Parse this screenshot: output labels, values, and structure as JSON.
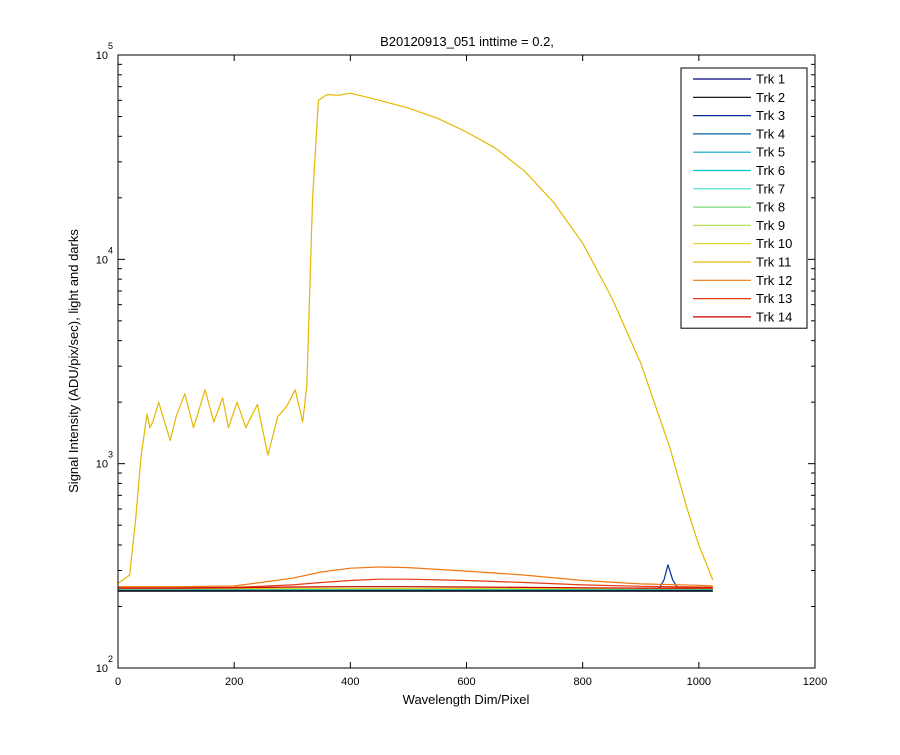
{
  "chart_data": {
    "type": "line",
    "title": "B20120913_051 inttime = 0.2,",
    "xlabel": "Wavelength Dim/Pixel",
    "ylabel": "Signal Intensity (ADU/pix/sec), light and darks",
    "xlim": [
      0,
      1200
    ],
    "ylim": [
      100,
      100000
    ],
    "yscale": "log",
    "grid": false,
    "legend_placement": "top-right",
    "x_ticks": [
      "0",
      "200",
      "400",
      "600",
      "800",
      "1000",
      "1200"
    ],
    "y_ticks": [
      {
        "value": 100,
        "base": "10",
        "exp": "2"
      },
      {
        "value": 1000,
        "base": "10",
        "exp": "3"
      },
      {
        "value": 10000,
        "base": "10",
        "exp": "4"
      },
      {
        "value": 100000,
        "base": "10",
        "exp": "5"
      }
    ],
    "series": [
      {
        "name": "Trk 1",
        "color": "#00007f",
        "x": [
          0,
          100,
          200,
          300,
          400,
          500,
          600,
          700,
          800,
          900,
          1024
        ],
        "y": [
          240,
          240,
          240,
          240,
          240,
          240,
          240,
          240,
          240,
          240,
          240
        ]
      },
      {
        "name": "Trk 2",
        "color": "#000000",
        "x": [
          0,
          100,
          200,
          300,
          400,
          500,
          600,
          700,
          800,
          900,
          1024
        ],
        "y": [
          238,
          238,
          238,
          238,
          238,
          238,
          238,
          238,
          238,
          238,
          238
        ]
      },
      {
        "name": "Trk 3",
        "color": "#0033a0",
        "x": [
          0,
          100,
          200,
          300,
          400,
          500,
          600,
          700,
          800,
          900,
          930,
          940,
          947,
          955,
          965,
          1024
        ],
        "y": [
          241,
          241,
          241,
          241,
          241,
          241,
          241,
          241,
          241,
          241,
          241,
          270,
          320,
          270,
          243,
          241
        ]
      },
      {
        "name": "Trk 4",
        "color": "#00609f",
        "x": [
          0,
          100,
          200,
          300,
          400,
          500,
          600,
          700,
          800,
          900,
          1024
        ],
        "y": [
          242,
          242,
          242,
          242,
          242,
          242,
          242,
          242,
          242,
          242,
          242
        ]
      },
      {
        "name": "Trk 5",
        "color": "#0aa5c0",
        "x": [
          0,
          100,
          200,
          300,
          400,
          500,
          600,
          700,
          800,
          900,
          1024
        ],
        "y": [
          243,
          243,
          243,
          243,
          243,
          243,
          243,
          243,
          243,
          243,
          243
        ]
      },
      {
        "name": "Trk 6",
        "color": "#00c8c8",
        "x": [
          0,
          100,
          200,
          300,
          400,
          500,
          600,
          700,
          800,
          900,
          1024
        ],
        "y": [
          243,
          243,
          243,
          243,
          243,
          243,
          243,
          243,
          243,
          243,
          243
        ]
      },
      {
        "name": "Trk 7",
        "color": "#40e0d0",
        "x": [
          0,
          100,
          200,
          300,
          400,
          500,
          600,
          700,
          800,
          900,
          1024
        ],
        "y": [
          244,
          244,
          244,
          244,
          244,
          244,
          244,
          244,
          244,
          244,
          244
        ]
      },
      {
        "name": "Trk 8",
        "color": "#7fd97f",
        "x": [
          0,
          100,
          200,
          300,
          400,
          500,
          600,
          700,
          800,
          900,
          1024
        ],
        "y": [
          244,
          244,
          244,
          244,
          244,
          244,
          244,
          244,
          244,
          244,
          244
        ]
      },
      {
        "name": "Trk 9",
        "color": "#b8e05a",
        "x": [
          0,
          100,
          200,
          300,
          400,
          500,
          600,
          700,
          800,
          900,
          1024
        ],
        "y": [
          245,
          245,
          245,
          245,
          245,
          245,
          245,
          245,
          245,
          245,
          245
        ]
      },
      {
        "name": "Trk 10",
        "color": "#d8d820",
        "x": [
          0,
          100,
          200,
          300,
          400,
          500,
          600,
          700,
          800,
          900,
          1024
        ],
        "y": [
          245,
          245,
          245,
          245,
          245,
          245,
          245,
          245,
          245,
          245,
          245
        ]
      },
      {
        "name": "Trk 11",
        "color": "#e6b800",
        "x": [
          0,
          20,
          30,
          40,
          50,
          55,
          60,
          70,
          80,
          90,
          100,
          115,
          130,
          150,
          165,
          180,
          190,
          205,
          220,
          240,
          258,
          275,
          290,
          305,
          318,
          325,
          335,
          345,
          360,
          380,
          400,
          410,
          450,
          500,
          550,
          600,
          650,
          700,
          750,
          800,
          850,
          900,
          950,
          980,
          1000,
          1024
        ],
        "y": [
          260,
          285,
          520,
          1100,
          1750,
          1500,
          1600,
          2000,
          1600,
          1300,
          1700,
          2200,
          1500,
          2300,
          1600,
          2100,
          1500,
          2000,
          1500,
          1950,
          1100,
          1700,
          1900,
          2300,
          1600,
          2400,
          20000,
          60000,
          64000,
          63500,
          65000,
          64000,
          60000,
          55000,
          49000,
          42000,
          35000,
          27000,
          19000,
          12000,
          6500,
          3100,
          1200,
          600,
          400,
          270
        ]
      },
      {
        "name": "Trk 12",
        "color": "#ee7711",
        "x": [
          0,
          100,
          200,
          300,
          350,
          400,
          450,
          500,
          600,
          700,
          800,
          900,
          1000,
          1024
        ],
        "y": [
          250,
          250,
          252,
          275,
          295,
          308,
          312,
          310,
          298,
          285,
          268,
          258,
          254,
          252
        ]
      },
      {
        "name": "Trk 13",
        "color": "#e83a10",
        "x": [
          0,
          100,
          200,
          300,
          350,
          400,
          450,
          500,
          600,
          700,
          800,
          900,
          1000,
          1024
        ],
        "y": [
          247,
          247,
          248,
          255,
          262,
          268,
          272,
          272,
          268,
          262,
          255,
          251,
          249,
          248
        ]
      },
      {
        "name": "Trk 14",
        "color": "#cc0000",
        "x": [
          0,
          100,
          200,
          300,
          400,
          500,
          600,
          700,
          800,
          900,
          1024
        ],
        "y": [
          246,
          246,
          247,
          249,
          250,
          250,
          249,
          248,
          247,
          246,
          246
        ]
      }
    ]
  }
}
